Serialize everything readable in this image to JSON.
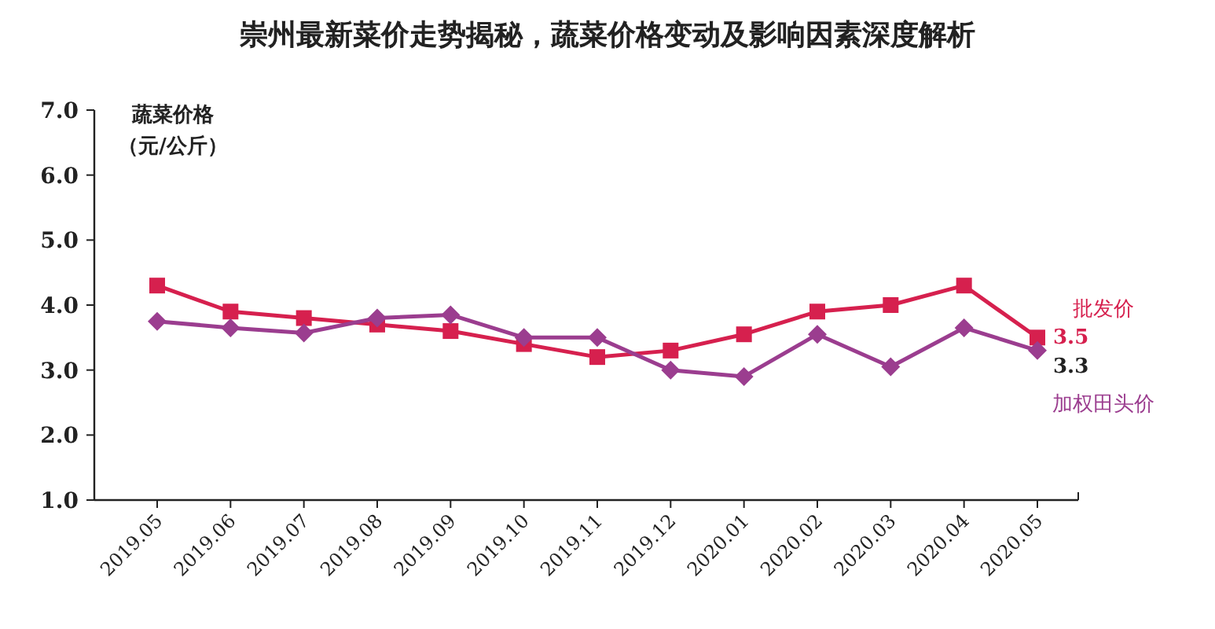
{
  "chart_data": {
    "type": "line",
    "title": "崇州最新菜价走势揭秘，蔬菜价格变动及影响因素深度解析",
    "ylabel": "蔬菜价格（元/公斤）",
    "categories": [
      "2019.05",
      "2019.06",
      "2019.07",
      "2019.08",
      "2019.09",
      "2019.10",
      "2019.11",
      "2019.12",
      "2020.01",
      "2020.02",
      "2020.03",
      "2020.04",
      "2020.05"
    ],
    "series": [
      {
        "name": "批发价",
        "color": "#d6204e",
        "marker": "square",
        "values": [
          4.3,
          3.9,
          3.8,
          3.7,
          3.6,
          3.4,
          3.2,
          3.3,
          3.55,
          3.9,
          4.0,
          4.3,
          3.5
        ],
        "value_labels": [
          null,
          null,
          null,
          null,
          null,
          null,
          null,
          null,
          null,
          null,
          null,
          null,
          "3.5"
        ]
      },
      {
        "name": "加权田头价",
        "color": "#9b3d8f",
        "marker": "diamond",
        "values": [
          3.75,
          3.65,
          3.57,
          3.8,
          3.85,
          3.5,
          3.5,
          3.0,
          2.9,
          3.55,
          3.05,
          3.65,
          3.3
        ],
        "value_labels": [
          null,
          null,
          null,
          null,
          null,
          null,
          null,
          null,
          null,
          null,
          null,
          null,
          "3.3"
        ]
      }
    ],
    "ylim": [
      1,
      7
    ],
    "yticks": [
      {
        "value": 1,
        "label": "1.0"
      },
      {
        "value": 2,
        "label": "2.0"
      },
      {
        "value": 3,
        "label": "3.0"
      },
      {
        "value": 4,
        "label": "4.0"
      },
      {
        "value": 5,
        "label": "5.0"
      },
      {
        "value": 6,
        "label": "6.0"
      },
      {
        "value": 7,
        "label": "7.0"
      }
    ],
    "grid": false,
    "legend": false
  }
}
